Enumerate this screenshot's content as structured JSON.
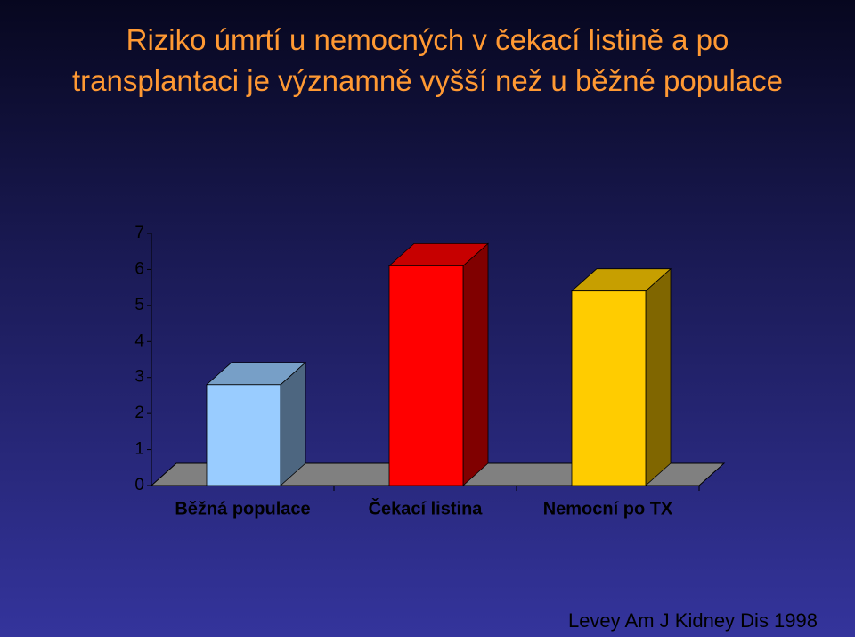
{
  "chart_data": {
    "type": "bar3d",
    "title": "Riziko úmrtí u nemocných v čekací listině a po transplantaci je významně vyšší než u běžné populace",
    "categories": [
      "Běžná populace",
      "Čekací listina",
      "Nemocní po TX"
    ],
    "values": [
      2.8,
      6.1,
      5.4
    ],
    "colors": [
      "#99ccff",
      "#ff0000",
      "#ffcc00"
    ],
    "ylim": [
      0,
      7
    ],
    "yticks": [
      0,
      1,
      2,
      3,
      4,
      5,
      6,
      7
    ],
    "grid": false,
    "source": "Levey Am J Kidney Dis 1998"
  }
}
